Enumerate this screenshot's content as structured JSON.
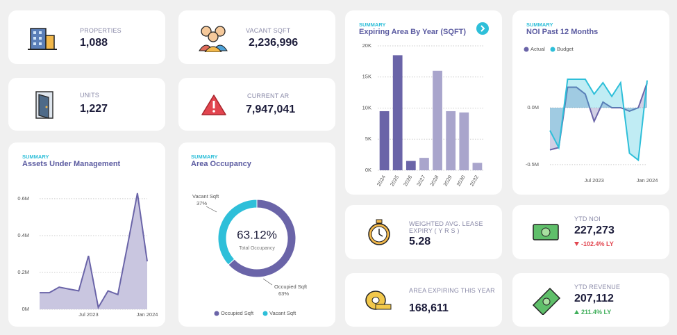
{
  "cards": [
    {
      "label": "PROPERTIES",
      "value": "1,088"
    },
    {
      "label": "VACANT SQFT",
      "value": "2,236,996"
    },
    {
      "label": "UNITS",
      "value": "1,227"
    },
    {
      "label": "CURRENT AR",
      "value": "7,947,041"
    },
    {
      "label": "WEIGHTED AVG. LEASE EXPIRY ( Y R S )",
      "value": "5.28"
    },
    {
      "label": "YTD NOI",
      "value": "227,273",
      "change": "-102.4% LY"
    },
    {
      "label": "AREA EXPIRING THIS YEAR",
      "value": "168,611"
    },
    {
      "label": "YTD REVENUE",
      "value": "207,112",
      "change": "211.4% LY"
    }
  ],
  "chart_data": [
    {
      "type": "area",
      "subtitle": "SUMMARY",
      "title": "Assets Under Management",
      "categories": [
        null,
        null,
        null,
        null,
        null,
        "Jul 2023",
        null,
        null,
        null,
        null,
        null,
        "Jan 2024"
      ],
      "values": [
        0.09,
        0.09,
        0.12,
        0.11,
        0.1,
        0.29,
        0.01,
        0.1,
        0.08,
        0.35,
        0.63,
        0.26
      ],
      "color": "#6a64a8",
      "fill": "#c9c6e0",
      "ylim": [
        0,
        0.66
      ],
      "yticks": [
        {
          "value": 0,
          "label": "0M"
        },
        {
          "value": 0.2,
          "label": "0.2M"
        },
        {
          "value": 0.4,
          "label": "0.4M"
        },
        {
          "value": 0.6,
          "label": "0.6M"
        }
      ],
      "grid": true
    },
    {
      "type": "donut",
      "subtitle": "SUMMARY",
      "title": "Area Occupancy",
      "categories": [
        "Occupied Sqft",
        "Vacant Sqft"
      ],
      "values": [
        63.12,
        36.88
      ],
      "value_labels": [
        "63%",
        "37%"
      ],
      "colors": [
        "#6a64a8",
        "#2ebfd9"
      ],
      "center_label": "63.12%",
      "center_caption": "Total Occupancy"
    },
    {
      "type": "bar",
      "subtitle": "SUMMARY",
      "title": "Expiring Area By Year (SQFT)",
      "categories": [
        "2024",
        "2025",
        "2026",
        "2027",
        "2028",
        "2029",
        "2030",
        "2032"
      ],
      "values": [
        9.5,
        18.5,
        1.5,
        2.0,
        16.0,
        9.5,
        9.3,
        1.2
      ],
      "colors": [
        "#6a64a8",
        "#6a64a8",
        "#6a64a8",
        "#a9a5cc",
        "#a9a5cc",
        "#a9a5cc",
        "#a9a5cc",
        "#a9a5cc"
      ],
      "ylim": [
        0,
        20
      ],
      "yticks": [
        {
          "value": 0,
          "label": "0K"
        },
        {
          "value": 5,
          "label": "5K"
        },
        {
          "value": 10,
          "label": "10K"
        },
        {
          "value": 15,
          "label": "15K"
        },
        {
          "value": 20,
          "label": "20K"
        }
      ],
      "grid": true
    },
    {
      "type": "line",
      "subtitle": "SUMMARY",
      "title": "NOI Past 12 Months",
      "categories": [
        null,
        null,
        null,
        null,
        null,
        "Jul 2023",
        null,
        null,
        null,
        null,
        null,
        "Jan 2024"
      ],
      "series": [
        {
          "name": "Actual",
          "color": "#6a64a8",
          "values": [
            -0.37,
            -0.35,
            0.18,
            0.18,
            0.12,
            -0.12,
            0.05,
            0.0,
            0.0,
            -0.03,
            0.0,
            0.22
          ]
        },
        {
          "name": "Budget",
          "color": "#2ebfd9",
          "values": [
            -0.2,
            -0.35,
            0.25,
            0.25,
            0.25,
            0.12,
            0.22,
            0.1,
            0.22,
            -0.4,
            -0.46,
            0.24
          ]
        }
      ],
      "ylim": [
        -0.58,
        0.58
      ],
      "yticks": [
        {
          "value": -0.5,
          "label": "-0.5M"
        },
        {
          "value": 0,
          "label": "0.0M"
        }
      ],
      "grid": true
    }
  ]
}
